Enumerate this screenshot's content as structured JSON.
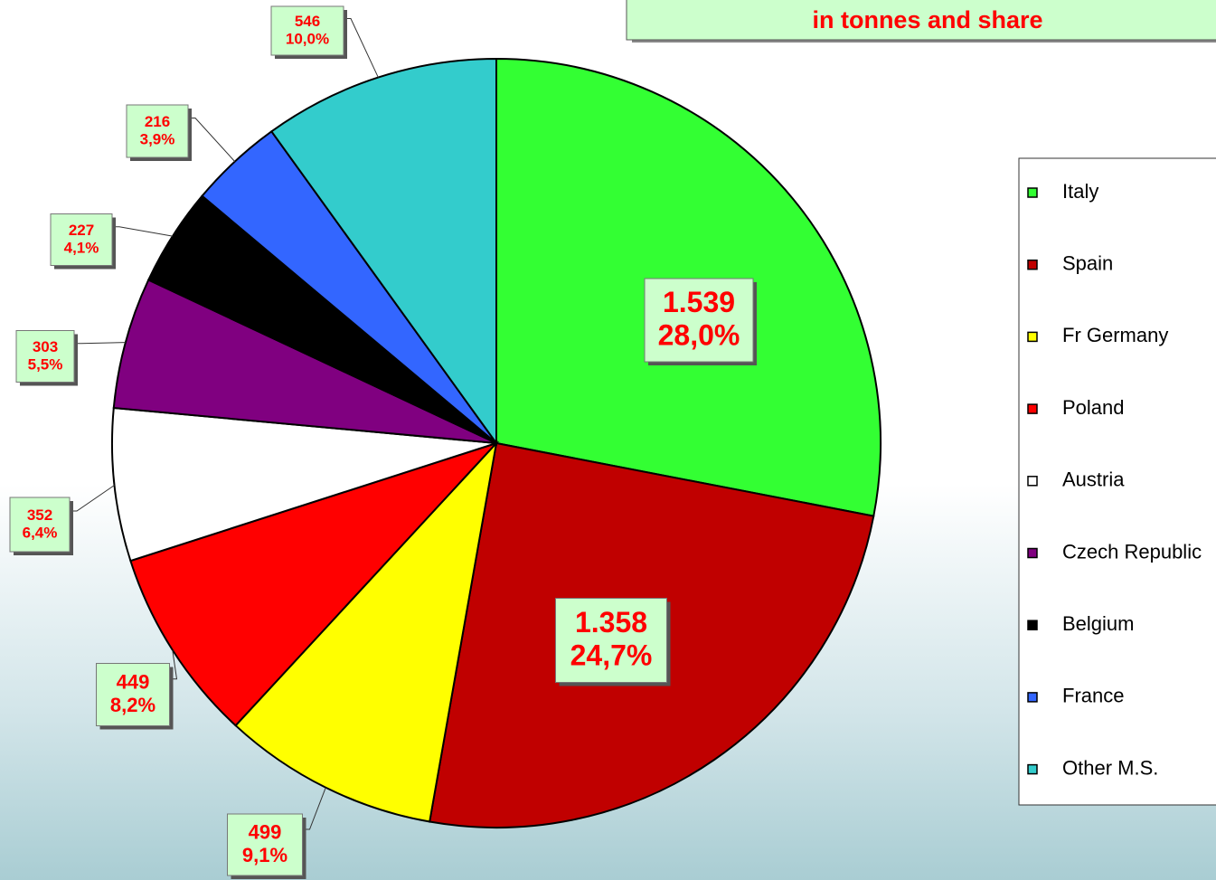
{
  "chart_data": {
    "type": "pie",
    "title": "in tonnes and share",
    "categories": [
      "Italy",
      "Spain",
      "Fr Germany",
      "Poland",
      "Austria",
      "Czech Republic",
      "Belgium",
      "France",
      "Other M.S."
    ],
    "values": [
      1539,
      1358,
      499,
      449,
      352,
      303,
      227,
      216,
      546
    ],
    "value_labels": [
      "1.539",
      "1.358",
      "499",
      "449",
      "352",
      "303",
      "227",
      "216",
      "546"
    ],
    "shares": [
      28.0,
      24.7,
      9.1,
      8.2,
      6.4,
      5.5,
      4.1,
      3.9,
      10.0
    ],
    "share_labels": [
      "28,0%",
      "24,7%",
      "9,1%",
      "8,2%",
      "6,4%",
      "5,5%",
      "4,1%",
      "3,9%",
      "10,0%"
    ],
    "colors": [
      "#33ff33",
      "#c00000",
      "#ffff00",
      "#ff0000",
      "#ffffff",
      "#800080",
      "#000000",
      "#3366ff",
      "#33cccc"
    ],
    "legend": "right"
  }
}
